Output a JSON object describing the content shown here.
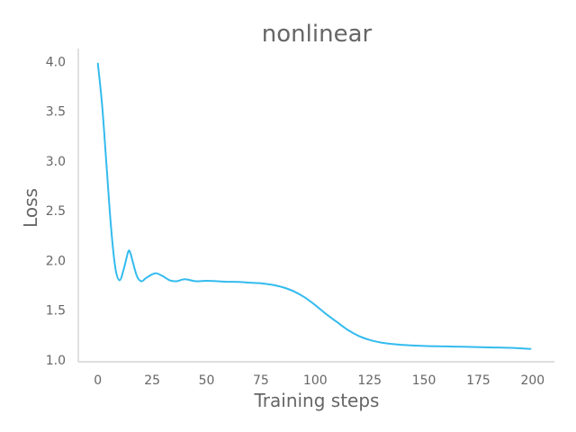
{
  "chart_data": {
    "type": "line",
    "title": "nonlinear",
    "xlabel": "Training steps",
    "ylabel": "Loss",
    "xlim": [
      -9,
      210
    ],
    "ylim": [
      0.98,
      4.13
    ],
    "xticks": [
      0,
      25,
      50,
      75,
      100,
      125,
      150,
      175,
      200
    ],
    "yticks": [
      1.0,
      1.5,
      2.0,
      2.5,
      3.0,
      3.5,
      4.0
    ],
    "ytick_labels": [
      "1.0",
      "1.5",
      "2.0",
      "2.5",
      "3.0",
      "3.5",
      "4.0"
    ],
    "grid": false,
    "series": [
      {
        "color": "#33bbee",
        "x": [
          0,
          2,
          4,
          6,
          8,
          10,
          12,
          14,
          15,
          16,
          18,
          20,
          22,
          25,
          27,
          30,
          33,
          36,
          40,
          45,
          50,
          55,
          60,
          65,
          70,
          75,
          80,
          85,
          90,
          95,
          100,
          105,
          110,
          115,
          120,
          125,
          130,
          135,
          140,
          150,
          160,
          170,
          180,
          190,
          199
        ],
        "y": [
          3.98,
          3.55,
          2.95,
          2.35,
          1.93,
          1.8,
          1.92,
          2.09,
          2.07,
          1.99,
          1.84,
          1.79,
          1.82,
          1.86,
          1.87,
          1.84,
          1.8,
          1.79,
          1.81,
          1.79,
          1.795,
          1.79,
          1.785,
          1.783,
          1.775,
          1.77,
          1.755,
          1.73,
          1.69,
          1.63,
          1.55,
          1.46,
          1.38,
          1.3,
          1.24,
          1.2,
          1.175,
          1.16,
          1.15,
          1.14,
          1.135,
          1.13,
          1.125,
          1.12,
          1.11
        ]
      }
    ]
  }
}
